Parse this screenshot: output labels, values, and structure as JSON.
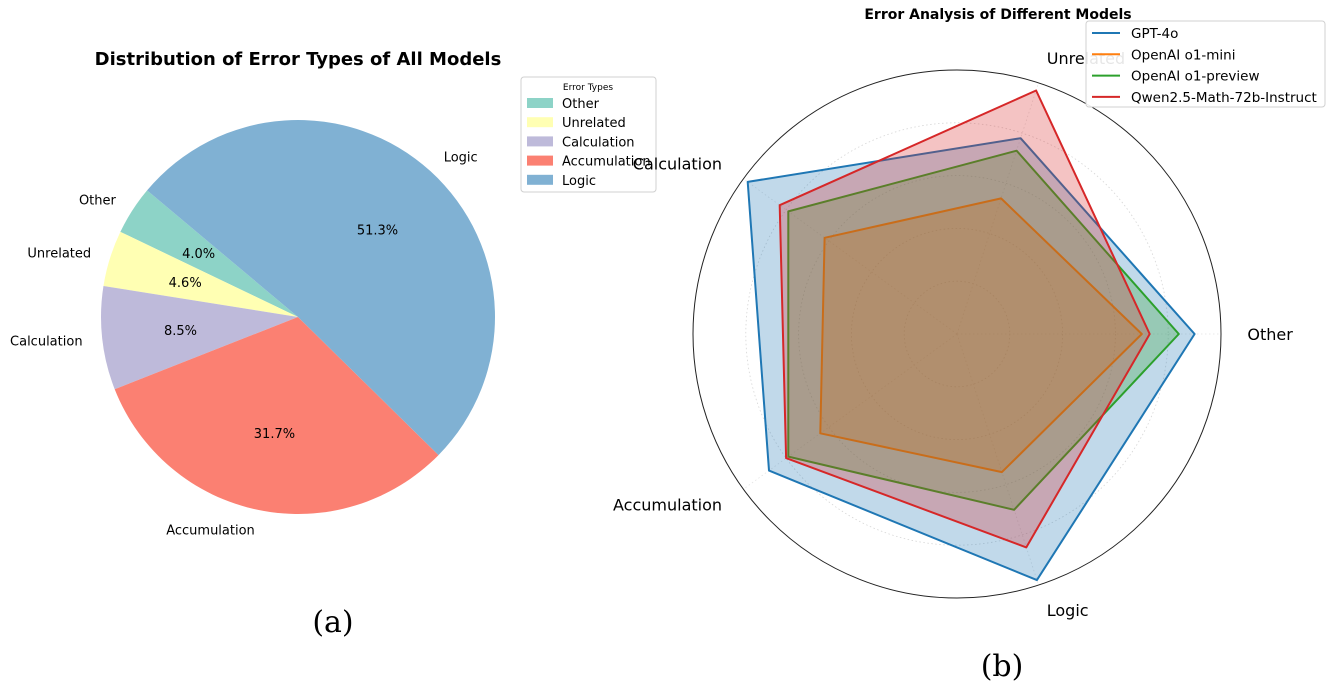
{
  "chart_data": [
    {
      "type": "pie",
      "title": "Distribution of Error Types of All Models",
      "categories": [
        "Other",
        "Unrelated",
        "Calculation",
        "Accumulation",
        "Logic"
      ],
      "values": [
        4.0,
        4.6,
        8.5,
        31.7,
        51.3
      ],
      "value_labels": [
        "4.0%",
        "4.6%",
        "8.5%",
        "31.7%",
        "51.3%"
      ],
      "colors": [
        "#8dd3c7",
        "#ffffb3",
        "#bebada",
        "#fb8072",
        "#80b1d3"
      ],
      "legend": {
        "title": "Error Types",
        "placement": "right",
        "entries": [
          "Other",
          "Unrelated",
          "Calculation",
          "Accumulation",
          "Logic"
        ]
      },
      "caption": "(a)"
    },
    {
      "type": "radar",
      "title": "Error Analysis of Different Models",
      "axes": [
        "Other",
        "Unrelated",
        "Calculation",
        "Accumulation",
        "Logic"
      ],
      "series": [
        {
          "name": "GPT-4o",
          "color": "#1f77b4",
          "values": [
            0.9,
            0.78,
            0.98,
            0.88,
            0.98
          ]
        },
        {
          "name": "OpenAI o1-mini",
          "color": "#ff7f0e",
          "values": [
            0.7,
            0.54,
            0.62,
            0.64,
            0.55
          ]
        },
        {
          "name": "OpenAI o1-preview",
          "color": "#2ca02c",
          "values": [
            0.84,
            0.73,
            0.79,
            0.79,
            0.7
          ]
        },
        {
          "name": "Qwen2.5-Math-72b-Instruct",
          "color": "#d62728",
          "values": [
            0.73,
            0.97,
            0.83,
            0.8,
            0.85
          ]
        }
      ],
      "range": [
        0,
        1
      ],
      "gridlines": true,
      "legend": {
        "placement": "top-right"
      },
      "caption": "(b)"
    }
  ]
}
